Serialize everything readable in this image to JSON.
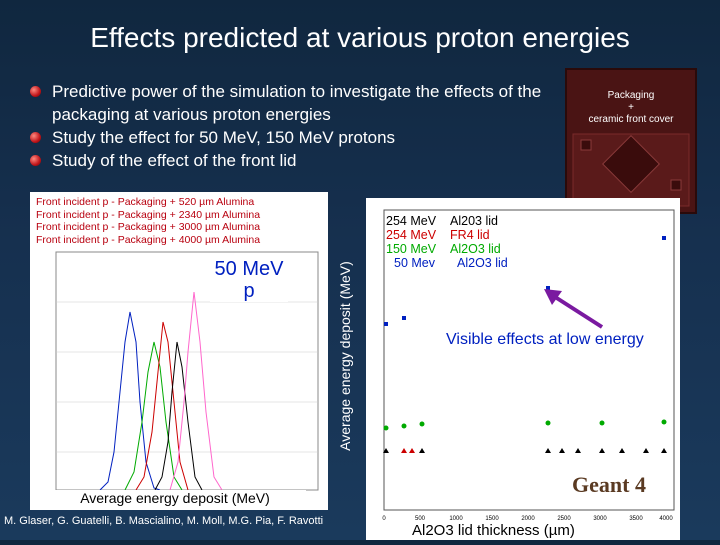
{
  "title": "Effects predicted at various proton energies",
  "bullets": [
    "Predictive power of the simulation to investigate the effects of the packaging at various proton energies",
    "Study the effect for 50 MeV, 150 MeV protons",
    "Study of the effect of the front lid"
  ],
  "packaging_label": [
    "Packaging",
    "+",
    "ceramic front cover"
  ],
  "left_plot": {
    "legend": [
      "Front incident p - Packaging + 520 µm Alumina",
      "Front incident p - Packaging + 2340 µm Alumina",
      "Front incident p - Packaging + 3000 µm Alumina",
      "Front incident p - Packaging + 4000 µm Alumina"
    ],
    "energy_label": "50 MeV p",
    "xlabel": "Average energy deposit (MeV)"
  },
  "right_plot": {
    "ylabel": "Average energy deposit (MeV)",
    "xlabel": "Al2O3 lid thickness (µm)",
    "legend": [
      {
        "energy": "254 MeV",
        "lid": "Al203 lid",
        "color": "#000000"
      },
      {
        "energy": "254 MeV",
        "lid": "FR4 lid",
        "color": "#cc0000"
      },
      {
        "energy": "150 MeV",
        "lid": "Al2O3 lid",
        "color": "#00aa00"
      },
      {
        "energy": "50 Mev",
        "lid": "Al2O3 lid",
        "color": "#0020c0"
      }
    ],
    "annotation": "Visible effects at low energy",
    "logo": "Geant 4",
    "x_ticks": [
      "0",
      "500",
      "1000",
      "1500",
      "2000",
      "2500",
      "3000",
      "3500",
      "4000"
    ]
  },
  "authors": "M. Glaser, G. Guatelli, B. Mascialino, M. Moll, M.G. Pia, F. Ravotti",
  "colors": {
    "accent_red": "#c0141a",
    "background": "#16304f"
  }
}
